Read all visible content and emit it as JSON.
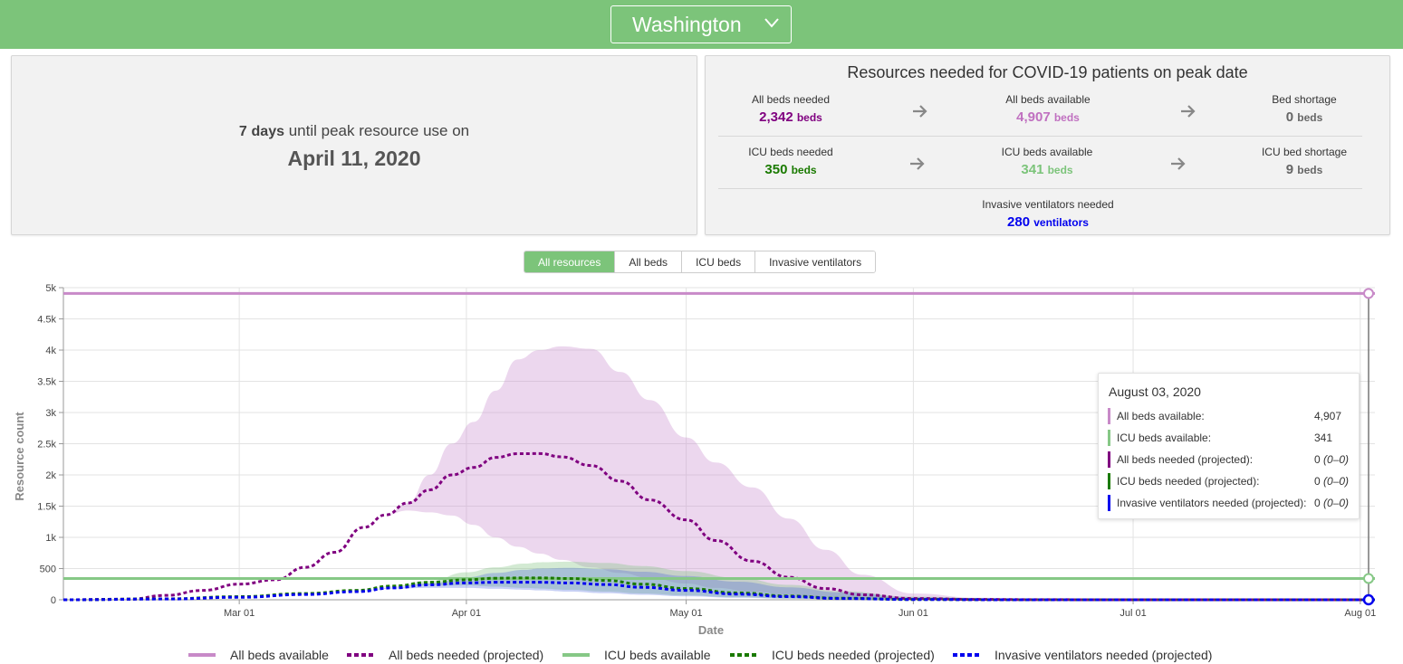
{
  "header": {
    "state": "Washington"
  },
  "peak": {
    "days_number": "7",
    "days_unit": "days",
    "until_text": "until peak resource use on",
    "date": "April 11, 2020"
  },
  "resources": {
    "title": "Resources needed for COVID-19 patients on peak date",
    "all_beds_needed": {
      "label": "All beds needed",
      "value": "2,342",
      "unit": "beds"
    },
    "all_beds_available": {
      "label": "All beds available",
      "value": "4,907",
      "unit": "beds"
    },
    "bed_shortage": {
      "label": "Bed shortage",
      "value": "0",
      "unit": "beds"
    },
    "icu_beds_needed": {
      "label": "ICU beds needed",
      "value": "350",
      "unit": "beds"
    },
    "icu_beds_available": {
      "label": "ICU beds available",
      "value": "341",
      "unit": "beds"
    },
    "icu_bed_shortage": {
      "label": "ICU bed shortage",
      "value": "9",
      "unit": "beds"
    },
    "ventilators_needed": {
      "label": "Invasive ventilators needed",
      "value": "280",
      "unit": "ventilators"
    }
  },
  "tabs": [
    {
      "label": "All resources",
      "active": true
    },
    {
      "label": "All beds",
      "active": false
    },
    {
      "label": "ICU beds",
      "active": false
    },
    {
      "label": "Invasive ventilators",
      "active": false
    }
  ],
  "tooltip": {
    "date": "August 03, 2020",
    "rows": [
      {
        "name": "All beds available:",
        "value": "4,907",
        "range": "",
        "color": "#c88ac8"
      },
      {
        "name": "ICU beds available:",
        "value": "341",
        "range": "",
        "color": "#86c886"
      },
      {
        "name": "All beds needed (projected):",
        "value": "0",
        "range": "(0–0)",
        "color": "#800080"
      },
      {
        "name": "ICU beds needed (projected):",
        "value": "0",
        "range": "(0–0)",
        "color": "#1a7a00"
      },
      {
        "name": "Invasive ventilators needed (projected):",
        "value": "0",
        "range": "(0–0)",
        "color": "#0000ee"
      }
    ]
  },
  "colors": {
    "header_green": "#7cc47a",
    "all_beds_available": "#c88ac8",
    "all_beds_needed": "#800080",
    "icu_available": "#86c886",
    "icu_needed": "#1a7a00",
    "ventilators": "#0000ee"
  },
  "chart_data": {
    "type": "line",
    "xlabel": "Date",
    "ylabel": "Resource count",
    "x_ticks": [
      "Mar 01",
      "Apr 01",
      "May 01",
      "Jun 01",
      "Jul 01",
      "Aug 01"
    ],
    "y_ticks": [
      "0",
      "500",
      "1k",
      "1.5k",
      "2k",
      "2.5k",
      "3k",
      "3.5k",
      "4k",
      "4.5k",
      "5k"
    ],
    "x_range": [
      "2020-02-06",
      "2020-08-03"
    ],
    "ylim": [
      0,
      5000
    ],
    "grid": true,
    "legend_position": "bottom",
    "series": [
      {
        "name": "All beds available",
        "style": "solid",
        "color": "#c88ac8",
        "x": [
          "2020-02-06",
          "2020-08-03"
        ],
        "y": [
          4907,
          4907
        ]
      },
      {
        "name": "All beds needed (projected)",
        "style": "dashed",
        "color": "#800080",
        "x": [
          "2020-02-06",
          "2020-02-15",
          "2020-02-20",
          "2020-02-25",
          "2020-03-01",
          "2020-03-06",
          "2020-03-10",
          "2020-03-14",
          "2020-03-18",
          "2020-03-21",
          "2020-03-24",
          "2020-03-27",
          "2020-03-30",
          "2020-04-02",
          "2020-04-05",
          "2020-04-08",
          "2020-04-11",
          "2020-04-14",
          "2020-04-18",
          "2020-04-22",
          "2020-04-26",
          "2020-05-01",
          "2020-05-05",
          "2020-05-10",
          "2020-05-15",
          "2020-05-20",
          "2020-05-25",
          "2020-06-01",
          "2020-06-10",
          "2020-06-20",
          "2020-07-01",
          "2020-08-03"
        ],
        "y": [
          0,
          10,
          70,
          150,
          250,
          320,
          520,
          760,
          1160,
          1360,
          1550,
          1760,
          2000,
          2120,
          2280,
          2340,
          2342,
          2290,
          2150,
          1900,
          1600,
          1280,
          950,
          620,
          360,
          180,
          80,
          20,
          5,
          1,
          0,
          0
        ],
        "band_upper": [
          0,
          10,
          70,
          150,
          250,
          320,
          520,
          760,
          1160,
          1360,
          1550,
          2000,
          2500,
          2850,
          3350,
          3850,
          4000,
          4060,
          4020,
          3650,
          3200,
          2600,
          2200,
          1800,
          1300,
          800,
          400,
          100,
          30,
          5,
          0,
          0
        ],
        "band_lower": [
          0,
          10,
          70,
          150,
          250,
          320,
          520,
          760,
          1160,
          1360,
          1430,
          1400,
          1350,
          1200,
          1000,
          850,
          740,
          640,
          520,
          430,
          350,
          260,
          190,
          130,
          80,
          45,
          20,
          5,
          0,
          0,
          0,
          0
        ]
      },
      {
        "name": "ICU beds available",
        "style": "solid",
        "color": "#86c886",
        "x": [
          "2020-02-06",
          "2020-08-03"
        ],
        "y": [
          341,
          341
        ]
      },
      {
        "name": "ICU beds needed (projected)",
        "style": "dashed",
        "color": "#1a7a00",
        "x": [
          "2020-02-06",
          "2020-02-20",
          "2020-03-01",
          "2020-03-10",
          "2020-03-17",
          "2020-03-22",
          "2020-03-27",
          "2020-04-01",
          "2020-04-05",
          "2020-04-09",
          "2020-04-11",
          "2020-04-15",
          "2020-04-20",
          "2020-04-25",
          "2020-05-01",
          "2020-05-08",
          "2020-05-15",
          "2020-05-22",
          "2020-06-01",
          "2020-06-15",
          "2020-08-03"
        ],
        "y": [
          0,
          15,
          50,
          100,
          150,
          220,
          280,
          320,
          345,
          350,
          350,
          340,
          310,
          250,
          180,
          110,
          60,
          25,
          5,
          0,
          0
        ],
        "band_upper": [
          0,
          15,
          50,
          100,
          150,
          220,
          300,
          440,
          520,
          580,
          600,
          610,
          590,
          540,
          460,
          350,
          240,
          140,
          50,
          5,
          0
        ],
        "band_lower": [
          0,
          15,
          50,
          100,
          150,
          210,
          230,
          230,
          210,
          190,
          180,
          160,
          130,
          100,
          70,
          40,
          20,
          8,
          0,
          0,
          0
        ]
      },
      {
        "name": "Invasive ventilators needed (projected)",
        "style": "dashed",
        "color": "#0000ee",
        "x": [
          "2020-02-06",
          "2020-02-20",
          "2020-03-01",
          "2020-03-10",
          "2020-03-17",
          "2020-03-22",
          "2020-03-27",
          "2020-04-01",
          "2020-04-05",
          "2020-04-09",
          "2020-04-11",
          "2020-04-15",
          "2020-04-20",
          "2020-04-25",
          "2020-05-01",
          "2020-05-08",
          "2020-05-15",
          "2020-05-22",
          "2020-06-01",
          "2020-06-15",
          "2020-08-03"
        ],
        "y": [
          0,
          12,
          40,
          85,
          130,
          190,
          240,
          270,
          280,
          280,
          280,
          270,
          245,
          200,
          150,
          90,
          50,
          20,
          4,
          0,
          0
        ],
        "band_upper": [
          0,
          12,
          40,
          85,
          130,
          195,
          260,
          360,
          430,
          480,
          500,
          510,
          490,
          450,
          380,
          290,
          200,
          120,
          40,
          4,
          0
        ],
        "band_lower": [
          0,
          12,
          40,
          85,
          130,
          180,
          190,
          190,
          175,
          160,
          150,
          130,
          105,
          80,
          55,
          32,
          16,
          6,
          0,
          0,
          0
        ]
      }
    ]
  }
}
